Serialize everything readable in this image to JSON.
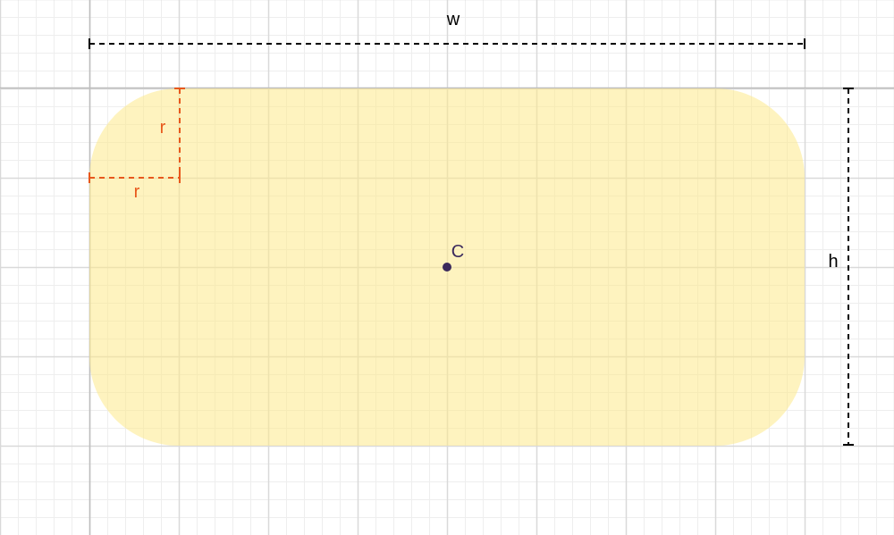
{
  "labels": {
    "width": "w",
    "height": "h",
    "radius_vertical": "r",
    "radius_horizontal": "r",
    "center": "C"
  },
  "colors": {
    "fill": "#fde98a",
    "dimension": "#000000",
    "radius": "#e8581c",
    "center": "#3b2a5c"
  }
}
